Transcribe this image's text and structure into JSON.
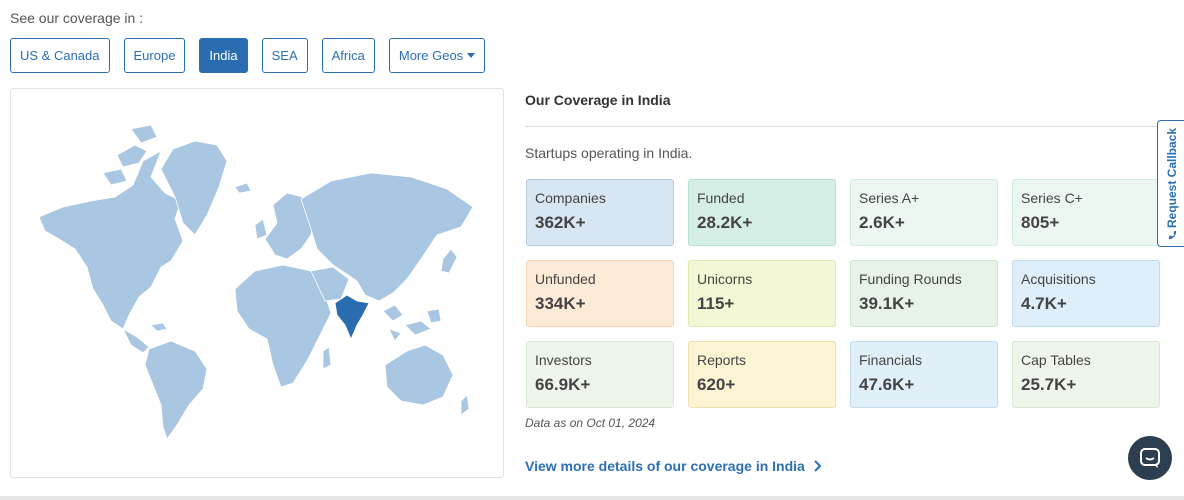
{
  "intro_text": "See our coverage in :",
  "geo_buttons": [
    {
      "label": "US & Canada"
    },
    {
      "label": "Europe"
    },
    {
      "label": "India",
      "active": true
    },
    {
      "label": "SEA"
    },
    {
      "label": "Africa"
    },
    {
      "label": "More Geos"
    }
  ],
  "coverage": {
    "title": "Our Coverage in India",
    "subtitle": "Startups operating in India.",
    "tiles": [
      {
        "label": "Companies",
        "value": "362K+"
      },
      {
        "label": "Funded",
        "value": "28.2K+"
      },
      {
        "label": "Series A+",
        "value": "2.6K+"
      },
      {
        "label": "Series C+",
        "value": "805+"
      },
      {
        "label": "Unfunded",
        "value": "334K+"
      },
      {
        "label": "Unicorns",
        "value": "115+"
      },
      {
        "label": "Funding Rounds",
        "value": "39.1K+"
      },
      {
        "label": "Acquisitions",
        "value": "4.7K+"
      },
      {
        "label": "Investors",
        "value": "66.9K+"
      },
      {
        "label": "Reports",
        "value": "620+"
      },
      {
        "label": "Financials",
        "value": "47.6K+"
      },
      {
        "label": "Cap Tables",
        "value": "25.7K+"
      }
    ],
    "data_date": "Data as on Oct 01, 2024",
    "view_more": "View more details of our coverage in India"
  },
  "callback_label": "Request Callback",
  "colors": {
    "accent": "#2d6fb4",
    "map_land": "#a9c6e2",
    "map_highlight": "#2a6cb0"
  }
}
